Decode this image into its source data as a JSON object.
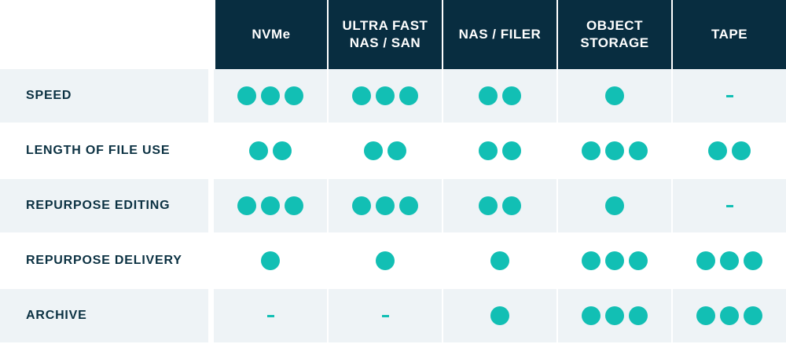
{
  "colors": {
    "header_bg": "#082d40",
    "header_text": "#ffffff",
    "row_shade": "#eef3f6",
    "label_text": "#0b3142",
    "rating_dot": "#12bfb4"
  },
  "columns": [
    {
      "id": "nvme",
      "label": "NVMe"
    },
    {
      "id": "ultra-fast-nas-san",
      "label": "ULTRA FAST\nNAS / SAN"
    },
    {
      "id": "nas-filer",
      "label": "NAS / FILER"
    },
    {
      "id": "object-storage",
      "label": "OBJECT\nSTORAGE"
    },
    {
      "id": "tape",
      "label": "TAPE"
    }
  ],
  "rows": [
    {
      "label": "SPEED",
      "ratings": [
        3,
        3,
        2,
        1,
        0
      ]
    },
    {
      "label": "LENGTH OF FILE USE",
      "ratings": [
        2,
        2,
        2,
        3,
        2
      ]
    },
    {
      "label": "REPURPOSE EDITING",
      "ratings": [
        3,
        3,
        2,
        1,
        0
      ]
    },
    {
      "label": "REPURPOSE DELIVERY",
      "ratings": [
        1,
        1,
        1,
        3,
        3
      ]
    },
    {
      "label": "ARCHIVE",
      "ratings": [
        0,
        0,
        1,
        3,
        3
      ]
    }
  ],
  "empty_rating_symbol": "-"
}
